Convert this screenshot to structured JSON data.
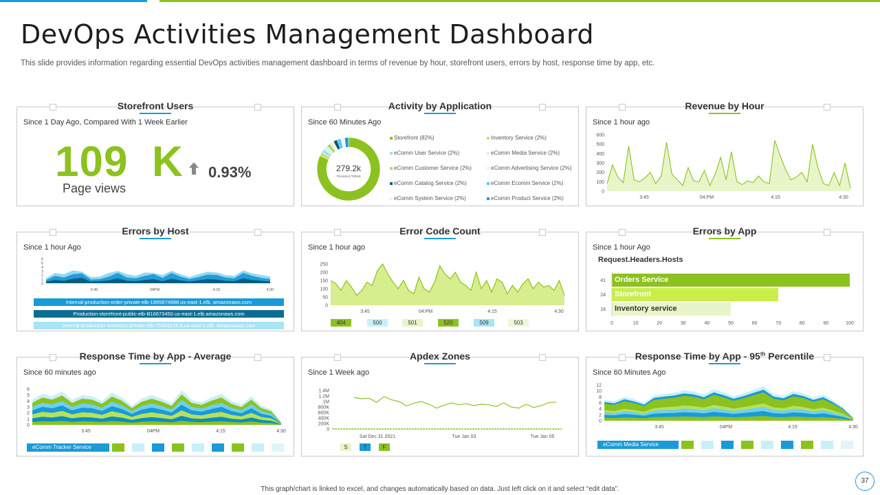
{
  "header": {
    "title": "DevOps Activities Management Dashboard",
    "subtitle": "This slide provides information regarding essential DevOps activities management dashboard in terms of revenue by hour, storefront users, errors by host, response time by app, etc."
  },
  "storefront": {
    "title": "Storefront Users",
    "subtitle": "Since 1 Day Ago, Compared With 1 Week Earlier",
    "value": "109",
    "unit": "K",
    "change": "0.93%",
    "label": "Page views"
  },
  "activity": {
    "title": "Activity by Application",
    "subtitle": "Since 60 Minutes Ago",
    "center_value": "279.2k",
    "center_label": "TRANSACTIONS",
    "legend": [
      {
        "label": "Storefront (82%)",
        "color": "#8cc21f"
      },
      {
        "label": "Inventory Service (2%)",
        "color": "#c8e06a"
      },
      {
        "label": "eComm User Service (2%)",
        "color": "#a0e0f5"
      },
      {
        "label": "eComm Media Service (2%)",
        "color": "#d8f0f8"
      },
      {
        "label": "eComm Customer Service (2%)",
        "color": "#b8d860"
      },
      {
        "label": "eComm Advertising Service (2%)",
        "color": "#eeeeee"
      },
      {
        "label": "eComm Catalog Service (2%)",
        "color": "#0a5a7a"
      },
      {
        "label": "eComm Ecomm Service (2%)",
        "color": "#5bc8e8"
      },
      {
        "label": "eComm System Service (2%)",
        "color": "#f2f2f2"
      },
      {
        "label": "eComm Product Service (2%)",
        "color": "#1a9ad6"
      }
    ]
  },
  "revenue": {
    "title": "Revenue by Hour",
    "subtitle": "Since 1 hour ago",
    "y_ticks": [
      "600",
      "500",
      "400",
      "300",
      "200",
      "100",
      "0"
    ],
    "x_ticks": [
      "3:45",
      "04:PM",
      "4:15",
      "4:30"
    ]
  },
  "errors_host": {
    "title": "Errors by Host",
    "subtitle": "Since 1 hour Ago",
    "y_ticks": [
      "6",
      "5",
      "4",
      "3",
      "2",
      "1",
      "0"
    ],
    "x_ticks": [
      "3:45",
      "04PM",
      "4:15",
      "4:30"
    ],
    "hosts": [
      {
        "label": "Internal-production-order-private-elb-1965874988.us-east-1.elb.  amazonaws.com",
        "color": "#1a9ad6"
      },
      {
        "label": "Production-storefront-public-elb-B16673450.us-east-1.elb.amazonaws.com",
        "color": "#0a6e94"
      },
      {
        "label": "Internal-production-inventory-private-elb-75334216.6.us-east-1.elb.  amazonaws.com",
        "color": "#a8e4f5"
      }
    ]
  },
  "error_code": {
    "title": "Error Code Count",
    "subtitle": "Since 1 hour ago",
    "y_ticks": [
      "250",
      "200",
      "150",
      "100",
      "50",
      "0"
    ],
    "x_ticks": [
      "3:45",
      "04:PM",
      "4:15",
      "4:30"
    ],
    "codes": [
      {
        "label": "404",
        "color": "#8cc21f"
      },
      {
        "label": "500",
        "color": "#c9effa"
      },
      {
        "label": "501",
        "color": "#e8f5c8"
      },
      {
        "label": "520",
        "color": "#8cc21f"
      },
      {
        "label": "509",
        "color": "#a8e4f5"
      },
      {
        "label": "503",
        "color": "#eef8d8"
      }
    ]
  },
  "errors_app": {
    "title": "Errors by App",
    "subtitle": "Since 1 hour Ago",
    "heading": "Request.Headers.Hosts",
    "x_ticks": [
      "0",
      "10",
      "20",
      "30",
      "40",
      "50",
      "60",
      "70",
      "80",
      "90",
      "100"
    ]
  },
  "resp_avg": {
    "title": "Response Time by App - Average",
    "subtitle": "Since 60 minutes ago",
    "y_ticks": [
      "6",
      "5",
      "4",
      "3",
      "2",
      "1",
      "0"
    ],
    "x_ticks": [
      "3:45",
      "04PM",
      "4:15",
      "4:30"
    ],
    "legend_label": "eComm Tracker Service",
    "chip_colors": [
      "#8cc21f",
      "#c9effa",
      "#1a9ad6",
      "#8cc21f",
      "#c9effa",
      "#1a9ad6",
      "#8cc21f",
      "#c9effa",
      "#e0f5fb"
    ]
  },
  "apdex": {
    "title": "Apdex Zones",
    "subtitle": "Since 1 Week ago",
    "y_ticks": [
      "1.4M",
      "1.2M",
      "1M",
      "800K",
      "600K",
      "400K",
      "200K",
      "0"
    ],
    "x_ticks": [
      "Sat Dec 31   2021",
      "Tue Jan 03",
      "Tue Jan 05"
    ],
    "zones": [
      {
        "label": "S",
        "color": "#e8f5c8"
      },
      {
        "label": "T",
        "color": "#1a9ad6"
      },
      {
        "label": "F",
        "color": "#8cc21f"
      }
    ]
  },
  "resp_95": {
    "title_main": "Response Time by App - 95",
    "title_sup": "th",
    "title_tail": " Percentile",
    "subtitle": "Since 60 Minutes Ago",
    "y_ticks": [
      "12",
      "10",
      "8",
      "6",
      "4",
      "2",
      "0"
    ],
    "x_ticks": [
      "3:45",
      "04PM",
      "4:15",
      "4:30"
    ],
    "legend_label": "eComm Media Service",
    "chip_colors": [
      "#8cc21f",
      "#c9effa",
      "#1a9ad6",
      "#8cc21f",
      "#c9effa",
      "#1a9ad6",
      "#8cc21f",
      "#c9effa",
      "#e0f5fb"
    ]
  },
  "chart_data": [
    {
      "type": "pie",
      "title": "Activity by Application",
      "categories": [
        "Storefront",
        "Inventory Service",
        "eComm User Service",
        "eComm Media Service",
        "eComm Customer Service",
        "eComm Advertising Service",
        "eComm Catalog Service",
        "eComm Ecomm Service",
        "eComm System Service",
        "eComm Product Service"
      ],
      "values": [
        82,
        2,
        2,
        2,
        2,
        2,
        2,
        2,
        2,
        2
      ]
    },
    {
      "type": "area",
      "title": "Revenue by Hour",
      "ylim": [
        0,
        600
      ],
      "values": [
        80,
        280,
        150,
        90,
        480,
        120,
        100,
        140,
        200,
        80,
        160,
        520,
        180,
        120,
        60,
        250,
        110,
        100,
        220,
        60,
        180,
        360,
        120,
        420,
        100,
        70,
        110,
        90,
        160,
        100,
        80,
        540,
        380,
        230,
        120,
        150,
        200,
        100,
        500,
        250,
        80,
        60,
        200,
        60,
        300,
        30
      ]
    },
    {
      "type": "area",
      "title": "Errors by Host",
      "ylim": [
        0,
        6
      ],
      "series": [
        {
          "name": "Internal-production-inventory",
          "values": [
            1.2,
            2.5,
            2.2,
            3.1,
            2.8,
            1.5,
            1.6,
            2.5,
            3.0,
            2.2,
            1.8,
            2.6,
            2.5,
            2.0,
            3.0,
            2.2,
            1.5,
            2.2,
            2.8,
            2.6,
            2.0,
            1.8,
            3.1,
            2.4,
            2.0,
            1.6
          ]
        },
        {
          "name": "Internal-production-order",
          "values": [
            0.8,
            1.8,
            1.4,
            2.2,
            2.4,
            0.9,
            1.0,
            1.6,
            2.5,
            1.4,
            1.2,
            1.8,
            2.2,
            1.3,
            2.5,
            1.6,
            1.0,
            1.5,
            2.1,
            2.0,
            1.4,
            1.2,
            2.5,
            1.8,
            1.3,
            1.0
          ]
        },
        {
          "name": "Production-storefront",
          "values": [
            0.4,
            0.8,
            0.6,
            1.1,
            1.3,
            0.4,
            0.5,
            0.7,
            1.2,
            0.6,
            0.5,
            0.8,
            1.0,
            0.5,
            1.1,
            0.7,
            0.4,
            0.7,
            1.0,
            0.9,
            0.6,
            0.5,
            1.2,
            0.8,
            0.6,
            0.4
          ]
        }
      ]
    },
    {
      "type": "area",
      "title": "Error Code Count",
      "ylim": [
        0,
        250
      ],
      "values": [
        150,
        130,
        90,
        150,
        110,
        60,
        90,
        140,
        120,
        210,
        250,
        190,
        140,
        100,
        150,
        90,
        70,
        170,
        100,
        80,
        140,
        240,
        190,
        160,
        200,
        140,
        120,
        90,
        200,
        100,
        150,
        80,
        160,
        140,
        70,
        120,
        80,
        130,
        160,
        100,
        140,
        110,
        120,
        90,
        150,
        60
      ]
    },
    {
      "type": "bar",
      "title": "Errors by App",
      "categories": [
        "Orders Service",
        "Storefront",
        "Inventory service"
      ],
      "values": [
        100,
        70,
        50
      ],
      "errors": [
        41,
        24,
        16
      ],
      "xlim": [
        0,
        100
      ]
    },
    {
      "type": "area",
      "title": "Response Time by App - Average",
      "ylim": [
        0,
        6
      ],
      "series": [
        {
          "name": "eComm Tracker Service",
          "values": [
            4.2,
            5.2,
            4.8,
            5.6,
            4.2,
            5.0,
            4.8,
            4.0,
            5.4,
            4.6,
            3.2,
            4.4,
            5.0,
            4.4,
            3.6,
            5.8,
            4.2,
            3.8,
            4.6,
            5.2,
            4.0,
            3.4,
            4.8,
            3.2,
            2.6,
            0.4
          ]
        }
      ]
    },
    {
      "type": "line",
      "title": "Apdex Zones",
      "ylim": [
        0,
        1400000
      ],
      "values": [
        1150000,
        1100000,
        1120000,
        970000,
        1180000,
        1060000,
        1000000,
        840000,
        940000,
        1000000,
        900000,
        760000,
        860000,
        950000,
        880000,
        920000,
        850000,
        900000,
        880000,
        820000,
        950000,
        800000,
        760000,
        900000,
        780000,
        850000,
        960000,
        980000
      ]
    },
    {
      "type": "area",
      "title": "Response Time by App - 95th Percentile",
      "ylim": [
        0,
        12
      ],
      "series": [
        {
          "name": "eComm Media Service",
          "values": [
            7.0,
            6.5,
            8.0,
            7.2,
            6.0,
            8.5,
            9.0,
            9.4,
            10.2,
            9.8,
            8.8,
            10.6,
            9.5,
            8.2,
            9.2,
            10.4,
            11.6,
            9.0,
            8.4,
            10.0,
            9.2,
            7.8,
            8.8,
            6.8,
            4.5,
            1.0
          ]
        }
      ]
    }
  ],
  "footer": {
    "note": "This graph/chart is linked to excel, and changes automatically based on data. Just left click on it and select “edit data”.",
    "page": "37"
  }
}
